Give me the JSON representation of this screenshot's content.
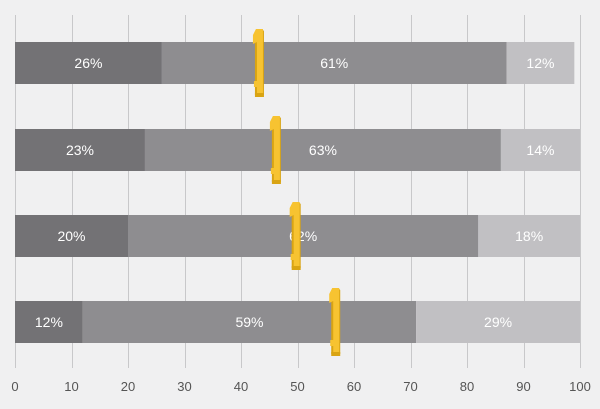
{
  "chart_data": {
    "type": "bar",
    "orientation": "horizontal",
    "stacked": true,
    "title": "",
    "xlabel": "",
    "ylabel": "",
    "xlim": [
      0,
      100
    ],
    "x_ticks": [
      0,
      10,
      20,
      30,
      40,
      50,
      60,
      70,
      80,
      90,
      100
    ],
    "grid": true,
    "legend": "none",
    "rows": [
      {
        "segments": [
          26,
          61,
          12
        ],
        "labels": [
          "26%",
          "61%",
          "12%"
        ],
        "marker": 43
      },
      {
        "segments": [
          23,
          63,
          14
        ],
        "labels": [
          "23%",
          "63%",
          "14%"
        ],
        "marker": 46
      },
      {
        "segments": [
          20,
          62,
          18
        ],
        "labels": [
          "20%",
          "62%",
          "18%"
        ],
        "marker": 49.5
      },
      {
        "segments": [
          12,
          59,
          29
        ],
        "labels": [
          "12%",
          "59%",
          "29%"
        ],
        "marker": 56.5
      }
    ],
    "colors": {
      "segments": [
        "#737275",
        "#8e8d90",
        "#c1c0c3"
      ],
      "marker": "#f7c331",
      "marker_shade": "#d9a413",
      "gridline": "#c8c8ca",
      "background": "#f0f0f1",
      "tick_text": "#555555"
    }
  }
}
